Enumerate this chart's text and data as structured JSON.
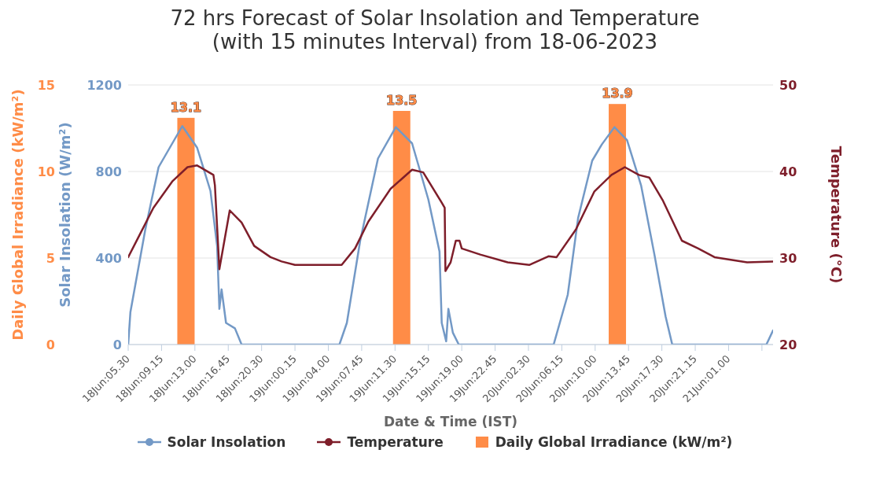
{
  "chart_data": {
    "type": "line",
    "title": "72 hrs Forecast of Solar Insolation and Temperature\n(with 15 minutes Interval) from 18-06-2023",
    "xlabel": "Date & Time (IST)",
    "ylabel": "Solar Insolation (W/m²)",
    "y2label": "Temperature (°C)",
    "y3label": "Daily Global Irradiance (kW/m²)",
    "xlim": [
      "2023-06-18T05:30",
      "2023-06-21T06:00"
    ],
    "xticks": [
      {
        "value": "2023-06-18T05:30",
        "label": "18Jun:05.30"
      },
      {
        "value": "2023-06-18T09:15",
        "label": "18Jun:09.15"
      },
      {
        "value": "2023-06-18T13:00",
        "label": "18Jun:13.00"
      },
      {
        "value": "2023-06-18T16:45",
        "label": "18Jun:16.45"
      },
      {
        "value": "2023-06-18T20:30",
        "label": "18Jun:20.30"
      },
      {
        "value": "2023-06-19T00:15",
        "label": "19Jun:00.15"
      },
      {
        "value": "2023-06-19T04:00",
        "label": "19Jun:04.00"
      },
      {
        "value": "2023-06-19T07:45",
        "label": "19Jun:07.45"
      },
      {
        "value": "2023-06-19T11:30",
        "label": "19Jun:11.30"
      },
      {
        "value": "2023-06-19T15:15",
        "label": "19Jun:15.15"
      },
      {
        "value": "2023-06-19T19:00",
        "label": "19Jun:19.00"
      },
      {
        "value": "2023-06-19T22:45",
        "label": "19Jun:22.45"
      },
      {
        "value": "2023-06-20T02:30",
        "label": "20Jun:02.30"
      },
      {
        "value": "2023-06-20T06:15",
        "label": "20Jun:06.15"
      },
      {
        "value": "2023-06-20T10:00",
        "label": "20Jun:10.00"
      },
      {
        "value": "2023-06-20T13:45",
        "label": "20Jun:13.45"
      },
      {
        "value": "2023-06-20T17:30",
        "label": "20Jun:17.30"
      },
      {
        "value": "2023-06-20T21:15",
        "label": "20Jun:21.15"
      },
      {
        "value": "2023-06-21T01:00",
        "label": "21Jun:01.00"
      },
      {
        "value": "2023-06-21T04:45",
        "label": null
      }
    ],
    "ylim": [
      0,
      1200
    ],
    "yticks": [
      0,
      400,
      800,
      1200
    ],
    "y2lim": [
      20,
      50
    ],
    "y2ticks": [
      20,
      30,
      40,
      50
    ],
    "y3lim": [
      0,
      15
    ],
    "y3ticks": [
      0,
      5,
      10,
      15
    ],
    "grid": "y",
    "legend": "bottom",
    "series": [
      {
        "name": "Solar Insolation",
        "axis": "y",
        "color": "#7399c6",
        "x": [
          "2023-06-18T05:30",
          "2023-06-18T05:45",
          "2023-06-18T07:25",
          "2023-06-18T08:55",
          "2023-06-18T11:35",
          "2023-06-18T13:15",
          "2023-06-18T14:45",
          "2023-06-18T15:30",
          "2023-06-18T15:45",
          "2023-06-18T16:00",
          "2023-06-18T16:30",
          "2023-06-18T17:30",
          "2023-06-18T18:15",
          "2023-06-19T05:15",
          "2023-06-19T06:05",
          "2023-06-19T07:35",
          "2023-06-19T09:35",
          "2023-06-19T11:35",
          "2023-06-19T13:25",
          "2023-06-19T15:15",
          "2023-06-19T16:30",
          "2023-06-19T16:45",
          "2023-06-19T17:15",
          "2023-06-19T17:30",
          "2023-06-19T18:00",
          "2023-06-19T18:40",
          "2023-06-20T05:20",
          "2023-06-20T06:55",
          "2023-06-20T08:05",
          "2023-06-20T09:40",
          "2023-06-20T10:45",
          "2023-06-20T12:10",
          "2023-06-20T13:35",
          "2023-06-20T15:10",
          "2023-06-20T16:40",
          "2023-06-20T17:55",
          "2023-06-20T18:40",
          "2023-06-21T05:15",
          "2023-06-21T06:00"
        ],
        "values": [
          0,
          150,
          530,
          820,
          1010,
          910,
          710,
          455,
          165,
          255,
          100,
          75,
          0,
          0,
          100,
          480,
          860,
          1005,
          930,
          670,
          430,
          100,
          15,
          165,
          55,
          0,
          0,
          230,
          585,
          850,
          925,
          1005,
          945,
          735,
          415,
          130,
          0,
          0,
          65
        ]
      },
      {
        "name": "Temperature",
        "axis": "y2",
        "color": "#7e1e2a",
        "x": [
          "2023-06-18T05:30",
          "2023-06-18T06:45",
          "2023-06-18T08:20",
          "2023-06-18T10:30",
          "2023-06-18T12:10",
          "2023-06-18T13:15",
          "2023-06-18T15:05",
          "2023-06-18T15:15",
          "2023-06-18T15:45",
          "2023-06-18T16:55",
          "2023-06-18T18:15",
          "2023-06-18T19:40",
          "2023-06-18T21:30",
          "2023-06-18T22:45",
          "2023-06-19T00:15",
          "2023-06-19T05:30",
          "2023-06-19T07:00",
          "2023-06-19T08:30",
          "2023-06-19T11:00",
          "2023-06-19T13:25",
          "2023-06-19T14:40",
          "2023-06-19T16:45",
          "2023-06-19T17:05",
          "2023-06-19T17:10",
          "2023-06-19T17:45",
          "2023-06-19T18:20",
          "2023-06-19T18:45",
          "2023-06-19T19:00",
          "2023-06-19T21:05",
          "2023-06-20T00:10",
          "2023-06-20T02:35",
          "2023-06-20T04:45",
          "2023-06-20T05:40",
          "2023-06-20T07:50",
          "2023-06-20T09:55",
          "2023-06-20T11:50",
          "2023-06-20T13:20",
          "2023-06-20T14:55",
          "2023-06-20T16:05",
          "2023-06-20T17:35",
          "2023-06-20T19:45",
          "2023-06-20T21:35",
          "2023-06-20T23:25",
          "2023-06-21T03:05",
          "2023-06-21T06:00"
        ],
        "values": [
          30.1,
          32.6,
          35.8,
          38.9,
          40.5,
          40.7,
          39.6,
          38.4,
          28.7,
          35.5,
          34.1,
          31.4,
          30.1,
          29.6,
          29.2,
          29.2,
          31.1,
          34.2,
          38.0,
          40.2,
          39.9,
          36.4,
          35.8,
          28.5,
          29.5,
          32.0,
          32.0,
          31.1,
          30.4,
          29.5,
          29.2,
          30.2,
          30.1,
          33.3,
          37.7,
          39.6,
          40.5,
          39.6,
          39.3,
          36.7,
          32.0,
          31.1,
          30.1,
          29.5,
          29.6
        ]
      },
      {
        "name": "Daily Global Irradiance (kW/m²)",
        "type": "bar",
        "axis": "y3",
        "color": "#ff8c47",
        "x": [
          "2023-06-18T12:00",
          "2023-06-19T12:15",
          "2023-06-20T12:30"
        ],
        "values": [
          13.1,
          13.5,
          13.9
        ],
        "value_labels": [
          "13.1",
          "13.5",
          "13.9"
        ]
      }
    ]
  }
}
